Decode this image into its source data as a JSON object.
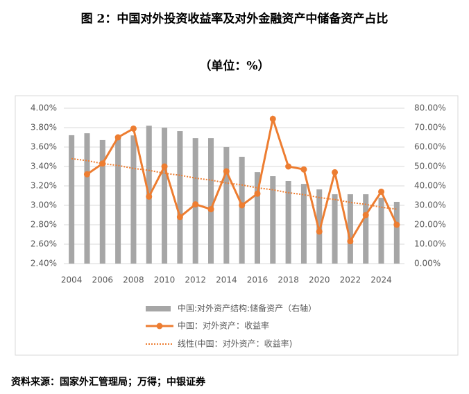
{
  "chart_data": {
    "type": "bar-line",
    "title": "图 2：中国对外投资收益率及对外金融资产中储备资产占比",
    "subtitle": "（单位：%）",
    "source": "资料来源：国家外汇管理局；万得；中银证券",
    "x": [
      2004,
      2005,
      2006,
      2007,
      2008,
      2009,
      2010,
      2011,
      2012,
      2013,
      2014,
      2015,
      2016,
      2017,
      2018,
      2019,
      2020,
      2021,
      2022,
      2023,
      2024,
      2025
    ],
    "xlim": [
      2003.5,
      2025.5
    ],
    "xticks": [
      2004,
      2006,
      2008,
      2010,
      2012,
      2014,
      2016,
      2018,
      2020,
      2022,
      2024
    ],
    "ylim": [
      2.4,
      4.0
    ],
    "yticks": [
      {
        "value": 2.4,
        "label": "2.40%"
      },
      {
        "value": 2.6,
        "label": "2.60%"
      },
      {
        "value": 2.8,
        "label": "2.80%"
      },
      {
        "value": 3.0,
        "label": "3.00%"
      },
      {
        "value": 3.2,
        "label": "3.20%"
      },
      {
        "value": 3.4,
        "label": "3.40%"
      },
      {
        "value": 3.6,
        "label": "3.60%"
      },
      {
        "value": 3.8,
        "label": "3.80%"
      },
      {
        "value": 4.0,
        "label": "4.00%"
      }
    ],
    "y2lim": [
      0,
      80
    ],
    "y2ticks": [
      {
        "value": 0,
        "label": "0.00%"
      },
      {
        "value": 10,
        "label": "10.00%"
      },
      {
        "value": 20,
        "label": "20.00%"
      },
      {
        "value": 30,
        "label": "30.00%"
      },
      {
        "value": 40,
        "label": "40.00%"
      },
      {
        "value": 50,
        "label": "50.00%"
      },
      {
        "value": 60,
        "label": "60.00%"
      },
      {
        "value": 70,
        "label": "70.00%"
      },
      {
        "value": 80,
        "label": "80.00%"
      }
    ],
    "series": [
      {
        "name": "中国:对外资产结构:储备资产（右轴）",
        "type": "bar",
        "axis": "y2",
        "color": "#a6a6a6",
        "values": [
          66.1,
          67.1,
          63.6,
          65,
          66,
          71,
          70,
          68.2,
          64.6,
          64.6,
          60,
          55,
          47.1,
          45,
          42.5,
          41,
          38.2,
          35.7,
          35.7,
          35.7,
          33.9,
          31.8
        ]
      },
      {
        "name": "中国：对外资产：收益率",
        "type": "line",
        "color": "#ed7d31",
        "values": [
          null,
          3.32,
          3.43,
          3.7,
          3.79,
          3.09,
          3.4,
          2.88,
          3.01,
          2.96,
          3.35,
          3.0,
          3.12,
          3.89,
          3.4,
          3.37,
          2.73,
          3.34,
          2.63,
          2.9,
          3.14,
          2.8
        ]
      },
      {
        "name": "线性(中国：对外资产：收益率)",
        "type": "trend",
        "color": "#ed7d31",
        "values": [
          3.48,
          3.46,
          3.43,
          3.41,
          3.38,
          3.36,
          3.33,
          3.31,
          3.28,
          3.26,
          3.23,
          3.21,
          3.18,
          3.16,
          3.13,
          3.11,
          3.08,
          3.06,
          3.03,
          3.01,
          2.98,
          2.96
        ]
      }
    ]
  }
}
